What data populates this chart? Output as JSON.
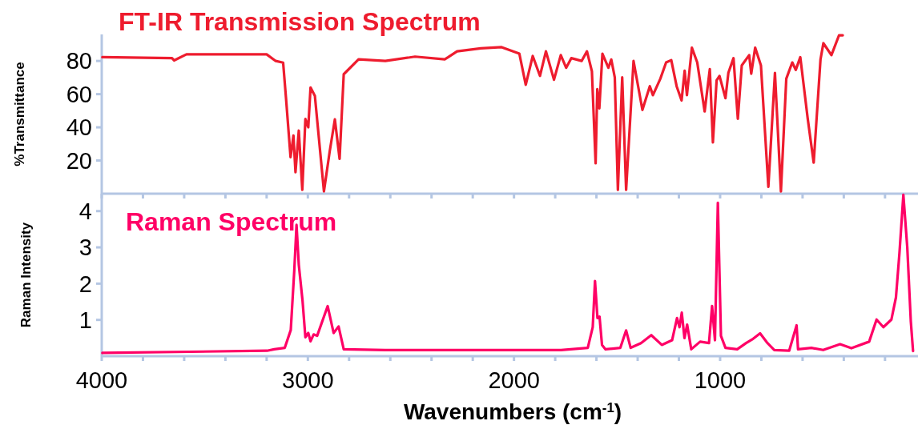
{
  "chart_data": [
    {
      "type": "line",
      "title": "FT-IR Transmission Spectrum",
      "ylabel": "%Transmittance",
      "x": [
        3997,
        3659,
        3649,
        3589,
        3200,
        3156,
        3120,
        3106,
        3084,
        3070,
        3060,
        3044,
        3027,
        3012,
        2998,
        2987,
        2966,
        2922,
        2894,
        2869,
        2846,
        2826,
        2754,
        2624,
        2480,
        2336,
        2319,
        2276,
        2161,
        2060,
        1974,
        1943,
        1909,
        1874,
        1845,
        1806,
        1773,
        1747,
        1722,
        1672,
        1646,
        1622,
        1604,
        1596,
        1586,
        1571,
        1542,
        1528,
        1511,
        1496,
        1475,
        1456,
        1420,
        1377,
        1341,
        1326,
        1290,
        1262,
        1237,
        1211,
        1187,
        1172,
        1161,
        1137,
        1111,
        1075,
        1050,
        1035,
        1017,
        1003,
        974,
        960,
        935,
        914,
        895,
        859,
        849,
        830,
        802,
        766,
        734,
        705,
        679,
        650,
        633,
        611,
        575,
        546,
        513,
        499,
        460,
        423,
        405
      ],
      "series": [
        {
          "color": "#ee1c2e",
          "values": [
            82.3,
            81.7,
            80.3,
            84,
            84,
            80,
            79,
            57.6,
            22,
            35,
            13,
            38,
            2.3,
            45,
            40,
            64,
            59,
            1.4,
            25.5,
            44.8,
            21,
            72,
            81,
            80,
            82.6,
            81,
            82.3,
            85.8,
            87.6,
            88.3,
            84.4,
            65.7,
            83,
            71,
            85.8,
            68.7,
            83.5,
            75.9,
            81.7,
            80,
            85.8,
            73.7,
            18.4,
            63,
            51.4,
            84.4,
            75.9,
            80.9,
            70.1,
            2.3,
            70.1,
            2.3,
            80,
            50.5,
            64.8,
            59.4,
            69.3,
            79.1,
            80.5,
            64.8,
            56.2,
            74.1,
            59.4,
            88,
            79.1,
            49.6,
            75.1,
            30.9,
            68.3,
            71,
            57.6,
            72.8,
            81.7,
            45.2,
            77.3,
            83.5,
            72.3,
            88,
            77.3,
            4.1,
            72.8,
            1.4,
            69.3,
            79.1,
            74.6,
            82.3,
            45.2,
            18.7,
            80.9,
            90.7,
            83.5,
            95.5,
            95.5
          ]
        }
      ],
      "xlim": [
        4000,
        40
      ],
      "ylim": [
        0,
        96
      ],
      "yticks": [
        20,
        40,
        60,
        80
      ],
      "xticks": [
        4000,
        {
          "value": 3800,
          "label": null
        },
        {
          "value": 3600,
          "label": null
        },
        {
          "value": 3400,
          "label": null
        },
        {
          "value": 3200,
          "label": null
        },
        3000,
        {
          "value": 2800,
          "label": null
        },
        {
          "value": 2600,
          "label": null
        },
        {
          "value": 2400,
          "label": null
        },
        {
          "value": 2200,
          "label": null
        },
        2000,
        {
          "value": 1800,
          "label": null
        },
        {
          "value": 1600,
          "label": null
        },
        {
          "value": 1400,
          "label": null
        },
        {
          "value": 1200,
          "label": null
        },
        1000,
        {
          "value": 800,
          "label": null
        },
        {
          "value": 600,
          "label": null
        },
        {
          "value": 400,
          "label": null
        },
        {
          "value": 200,
          "label": null
        }
      ],
      "tick_labels": "y",
      "grid": false,
      "marker": "none",
      "line_style": "solid"
    },
    {
      "type": "line",
      "title": "Raman Spectrum",
      "ylabel": "Raman Intensity",
      "xlabel": "Wavenumbers (cm$^{-1}$)",
      "x": [
        3997,
        3198,
        3163,
        3112,
        3083,
        3066,
        3055,
        3044,
        3026,
        3012,
        2998,
        2987,
        2972,
        2955,
        2904,
        2875,
        2851,
        2826,
        2624,
        2319,
        1772,
        1642,
        1618,
        1607,
        1595,
        1585,
        1573,
        1556,
        1484,
        1456,
        1434,
        1384,
        1334,
        1283,
        1233,
        1209,
        1197,
        1186,
        1173,
        1160,
        1140,
        1097,
        1054,
        1039,
        1025,
        1011,
        996,
        974,
        917,
        874,
        845,
        806,
        773,
        737,
        665,
        629,
        622,
        557,
        500,
        418,
        363,
        277,
        241,
        208,
        169,
        147,
        130,
        111,
        92,
        75,
        64
      ],
      "series": [
        {
          "color": "#ff0066",
          "values": [
            0.09,
            0.15,
            0.19,
            0.23,
            0.72,
            2.35,
            3.62,
            2.52,
            1.54,
            0.52,
            0.64,
            0.41,
            0.6,
            0.56,
            1.38,
            0.64,
            0.82,
            0.19,
            0.17,
            0.17,
            0.17,
            0.23,
            0.8,
            2.07,
            1.05,
            1.09,
            0.31,
            0.19,
            0.23,
            0.71,
            0.23,
            0.36,
            0.58,
            0.31,
            0.44,
            1.05,
            0.8,
            1.2,
            0.5,
            0.87,
            0.19,
            0.4,
            0.36,
            1.38,
            0.44,
            4.23,
            0.56,
            0.23,
            0.19,
            0.36,
            0.46,
            0.63,
            0.38,
            0.17,
            0.15,
            0.85,
            0.19,
            0.23,
            0.17,
            0.33,
            0.22,
            0.4,
            1.01,
            0.8,
            1.01,
            1.62,
            2.84,
            4.45,
            3.0,
            0.97,
            0.14
          ]
        }
      ],
      "xlim": [
        4000,
        40
      ],
      "ylim": [
        0,
        4.48
      ],
      "yticks": [
        1,
        2,
        3,
        4
      ],
      "xticks": [
        4000,
        {
          "value": 3800,
          "label": null
        },
        {
          "value": 3600,
          "label": null
        },
        {
          "value": 3400,
          "label": null
        },
        {
          "value": 3200,
          "label": null
        },
        3000,
        {
          "value": 2800,
          "label": null
        },
        {
          "value": 2600,
          "label": null
        },
        {
          "value": 2400,
          "label": null
        },
        {
          "value": 2200,
          "label": null
        },
        2000,
        {
          "value": 1800,
          "label": null
        },
        {
          "value": 1600,
          "label": null
        },
        {
          "value": 1400,
          "label": null
        },
        {
          "value": 1200,
          "label": null
        },
        1000,
        {
          "value": 800,
          "label": null
        },
        {
          "value": 600,
          "label": null
        },
        {
          "value": 400,
          "label": null
        },
        {
          "value": 200,
          "label": null
        }
      ],
      "grid": false,
      "marker": "none",
      "line_style": "solid"
    }
  ]
}
